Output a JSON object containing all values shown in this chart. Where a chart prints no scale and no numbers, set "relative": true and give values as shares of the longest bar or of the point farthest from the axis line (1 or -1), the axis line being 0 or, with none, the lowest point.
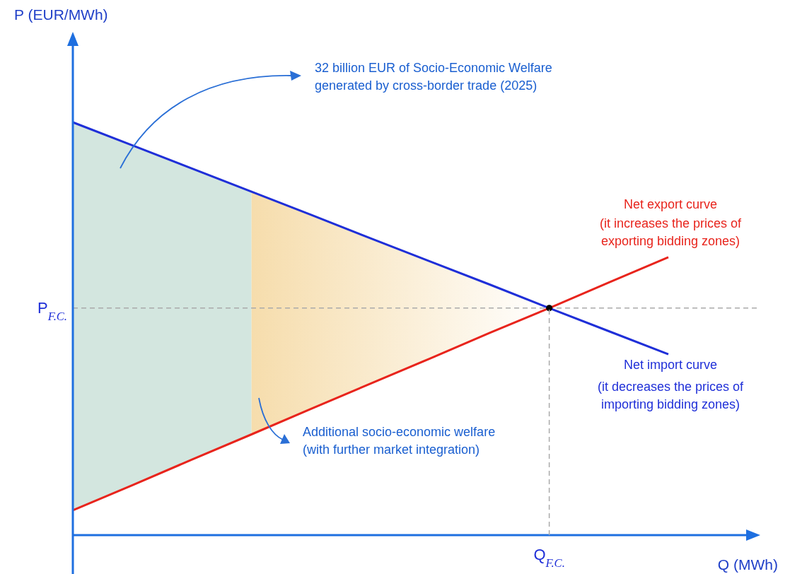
{
  "chart_data": {
    "type": "line",
    "relative": true,
    "xlabel": "Q (MWh)",
    "categories": [
      null,
      null,
      null,
      null,
      null,
      null,
      null,
      null,
      null,
      null,
      null
    ],
    "series": [
      {
        "name": "Net export curve",
        "color": "#e8241c",
        "values": [
          0.06,
          0.121,
          0.183,
          0.244,
          0.306,
          0.367,
          0.428,
          0.49,
          0.55,
          0.612,
          0.673
        ]
      },
      {
        "name": "Net import curve",
        "color": "#1f2fd8",
        "values": [
          1,
          0.944,
          0.888,
          0.832,
          0.776,
          0.719,
          0.663,
          0.607,
          0.55,
          0.494,
          0.438
        ]
      }
    ],
    "ref_lines": [
      {
        "axis": "y",
        "value": 0.55,
        "label": "P$_{F.C.}$",
        "color": "#aaaaaa",
        "line_style": "dashed"
      }
    ],
    "annotations": [
      "32 billion EUR of Socio-Economic Welfare\ngenerated by cross-border trade (2025)",
      "Additional socio-economic welfare\n(with further market integration)",
      "(it increases the prices of\nexporting bidding zones)",
      "(it decreases the prices of\nimporting bidding zones)",
      "P (EUR/MWh)",
      "Q$_{F.C.}$"
    ]
  }
}
